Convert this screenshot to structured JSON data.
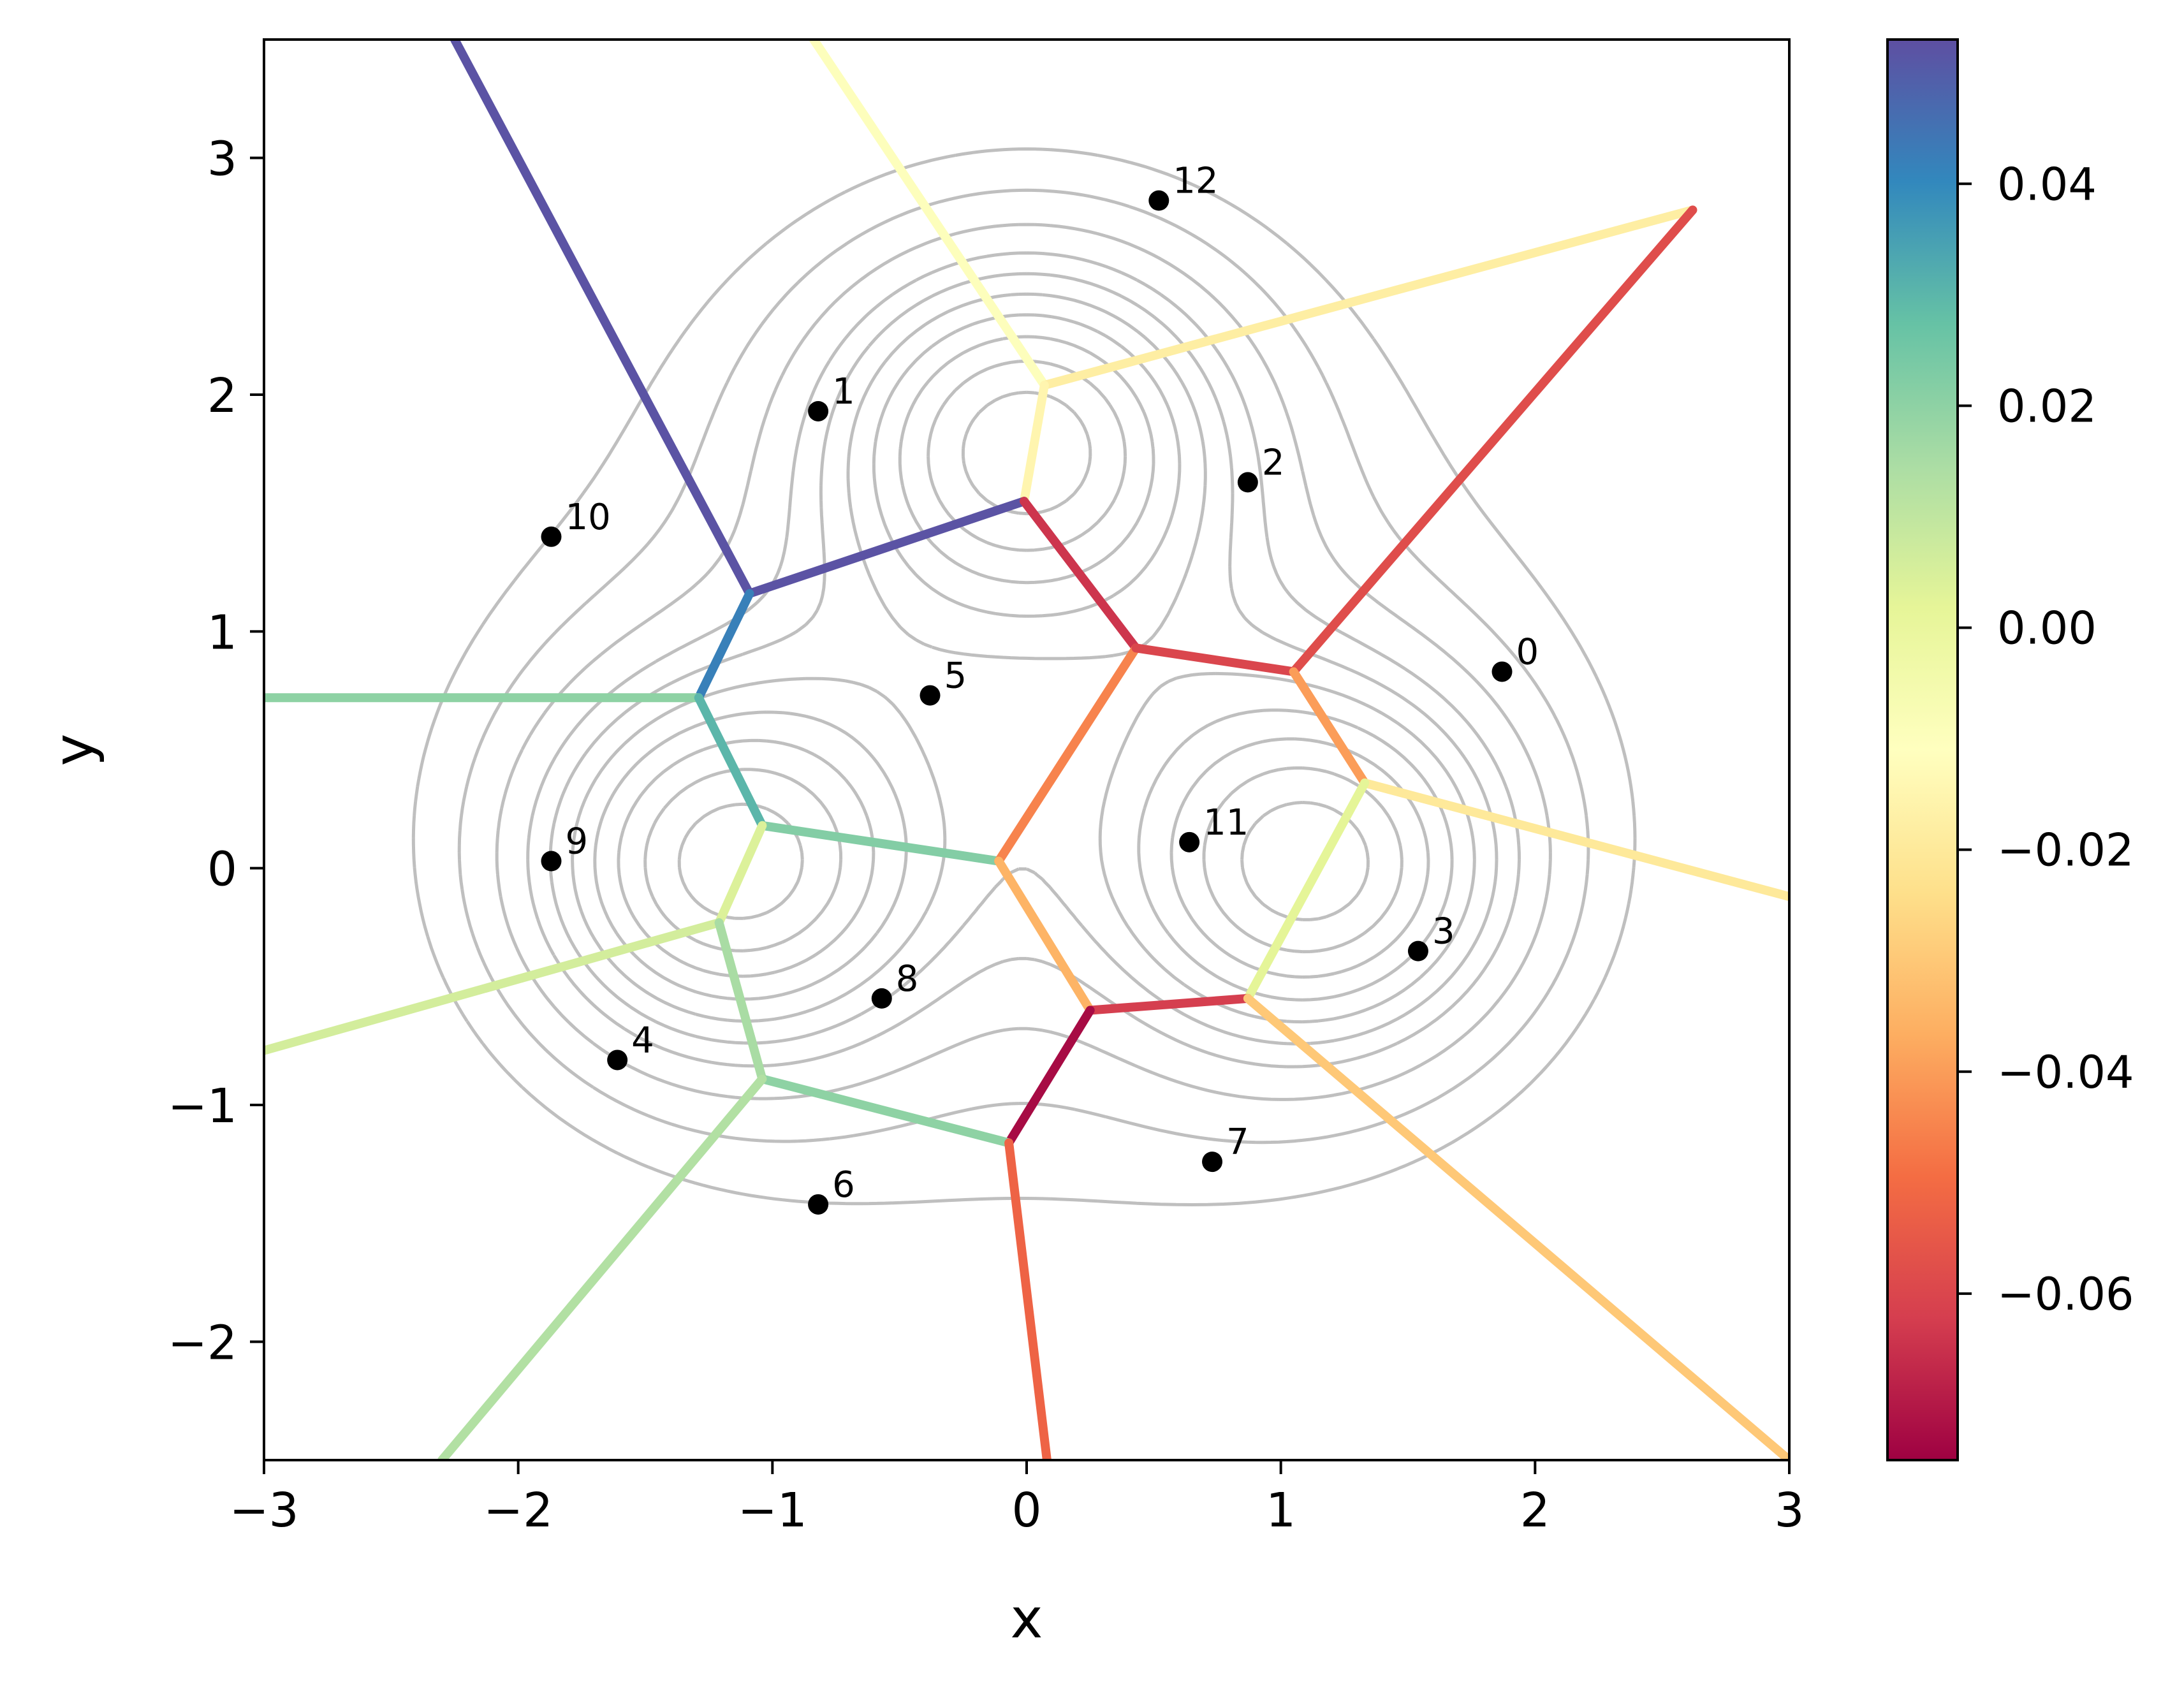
{
  "chart_data": {
    "type": "scatter",
    "title": "",
    "xlabel": "x",
    "ylabel": "y",
    "xlim": [
      -3,
      3
    ],
    "ylim": [
      -2.5,
      3.5
    ],
    "x_ticks": [
      -3,
      -2,
      -1,
      0,
      1,
      2,
      3
    ],
    "x_tick_labels": [
      "−3",
      "−2",
      "−1",
      "0",
      "1",
      "2",
      "3"
    ],
    "y_ticks": [
      -2,
      -1,
      0,
      1,
      2,
      3
    ],
    "y_tick_labels": [
      "−2",
      "−1",
      "0",
      "1",
      "2",
      "3"
    ],
    "grid": false,
    "points": [
      {
        "label": "0",
        "x": 1.87,
        "y": 0.83
      },
      {
        "label": "1",
        "x": -0.82,
        "y": 1.93
      },
      {
        "label": "2",
        "x": 0.87,
        "y": 1.63
      },
      {
        "label": "3",
        "x": 1.54,
        "y": -0.35
      },
      {
        "label": "4",
        "x": -1.61,
        "y": -0.81
      },
      {
        "label": "5",
        "x": -0.38,
        "y": 0.73
      },
      {
        "label": "6",
        "x": -0.82,
        "y": -1.42
      },
      {
        "label": "7",
        "x": 0.73,
        "y": -1.24
      },
      {
        "label": "8",
        "x": -0.57,
        "y": -0.55
      },
      {
        "label": "9",
        "x": -1.87,
        "y": 0.03
      },
      {
        "label": "10",
        "x": -1.87,
        "y": 1.4
      },
      {
        "label": "11",
        "x": 0.64,
        "y": 0.11
      },
      {
        "label": "12",
        "x": 0.52,
        "y": 2.82
      }
    ],
    "voronoi_vertices": {
      "A": [
        0.07,
        2.04
      ],
      "B": [
        -0.01,
        1.55
      ],
      "C": [
        -1.09,
        1.16
      ],
      "D": [
        -1.29,
        0.72
      ],
      "E": [
        -1.04,
        0.18
      ],
      "F": [
        -0.11,
        0.03
      ],
      "G": [
        0.43,
        0.93
      ],
      "H": [
        1.05,
        0.83
      ],
      "I": [
        1.33,
        0.36
      ],
      "J": [
        0.87,
        -0.55
      ],
      "K": [
        0.25,
        -0.6
      ],
      "L": [
        -1.21,
        -0.23
      ],
      "M": [
        -1.04,
        -0.89
      ],
      "N": [
        -0.07,
        -1.16
      ]
    },
    "voronoi_edges": [
      {
        "from": "A",
        "to": [
          -0.9,
          3.6
        ],
        "value": -0.01
      },
      {
        "from": "A",
        "to": [
          2.62,
          2.78
        ],
        "value": -0.018
      },
      {
        "from": "A",
        "to": "B",
        "value": -0.015
      },
      {
        "from": "B",
        "to": "C",
        "value": 0.052
      },
      {
        "from": "B",
        "to": "G",
        "value": -0.064
      },
      {
        "from": "C",
        "to": [
          -2.25,
          3.5
        ],
        "value": 0.052
      },
      {
        "from": "C",
        "to": "D",
        "value": 0.042
      },
      {
        "from": "D",
        "to": [
          -3.0,
          0.72
        ],
        "value": 0.02
      },
      {
        "from": "D",
        "to": "E",
        "value": 0.03
      },
      {
        "from": "E",
        "to": "F",
        "value": 0.022
      },
      {
        "from": "E",
        "to": "L",
        "value": 0.004
      },
      {
        "from": "F",
        "to": "G",
        "value": -0.045
      },
      {
        "from": "F",
        "to": "K",
        "value": -0.035
      },
      {
        "from": "G",
        "to": "H",
        "value": -0.06
      },
      {
        "from": "H",
        "to": [
          2.62,
          2.78
        ],
        "value": -0.058
      },
      {
        "from": "H",
        "to": "I",
        "value": -0.04
      },
      {
        "from": "I",
        "to": [
          3.0,
          -0.12
        ],
        "value": -0.02
      },
      {
        "from": "I",
        "to": "J",
        "value": 0.002
      },
      {
        "from": "J",
        "to": "K",
        "value": -0.062
      },
      {
        "from": "J",
        "to": [
          3.0,
          -2.5
        ],
        "value": -0.03
      },
      {
        "from": "K",
        "to": "N",
        "value": -0.073
      },
      {
        "from": "L",
        "to": [
          -3.0,
          -0.77
        ],
        "value": 0.006
      },
      {
        "from": "L",
        "to": "M",
        "value": 0.015
      },
      {
        "from": "M",
        "to": "N",
        "value": 0.02
      },
      {
        "from": "M",
        "to": [
          -2.3,
          -2.5
        ],
        "value": 0.013
      },
      {
        "from": "N",
        "to": [
          0.08,
          -2.5
        ],
        "value": -0.052
      }
    ],
    "contours": {
      "description": "gray level-set contours of a three-well potential",
      "color": "#bfbfbf"
    },
    "colorbar": {
      "min": -0.075,
      "max": 0.053,
      "ticks": [
        0.04,
        0.02,
        0.0,
        -0.02,
        -0.04,
        -0.06
      ],
      "tick_labels": [
        "0.04",
        "0.02",
        "0.00",
        "−0.02",
        "−0.04",
        "−0.06"
      ],
      "colormap": "Spectral",
      "colors": [
        "#9e0142",
        "#d53e4f",
        "#f46d43",
        "#fdae61",
        "#fee08b",
        "#ffffbf",
        "#e6f598",
        "#abdda4",
        "#66c2a5",
        "#3288bd",
        "#5e4fa2"
      ]
    }
  }
}
